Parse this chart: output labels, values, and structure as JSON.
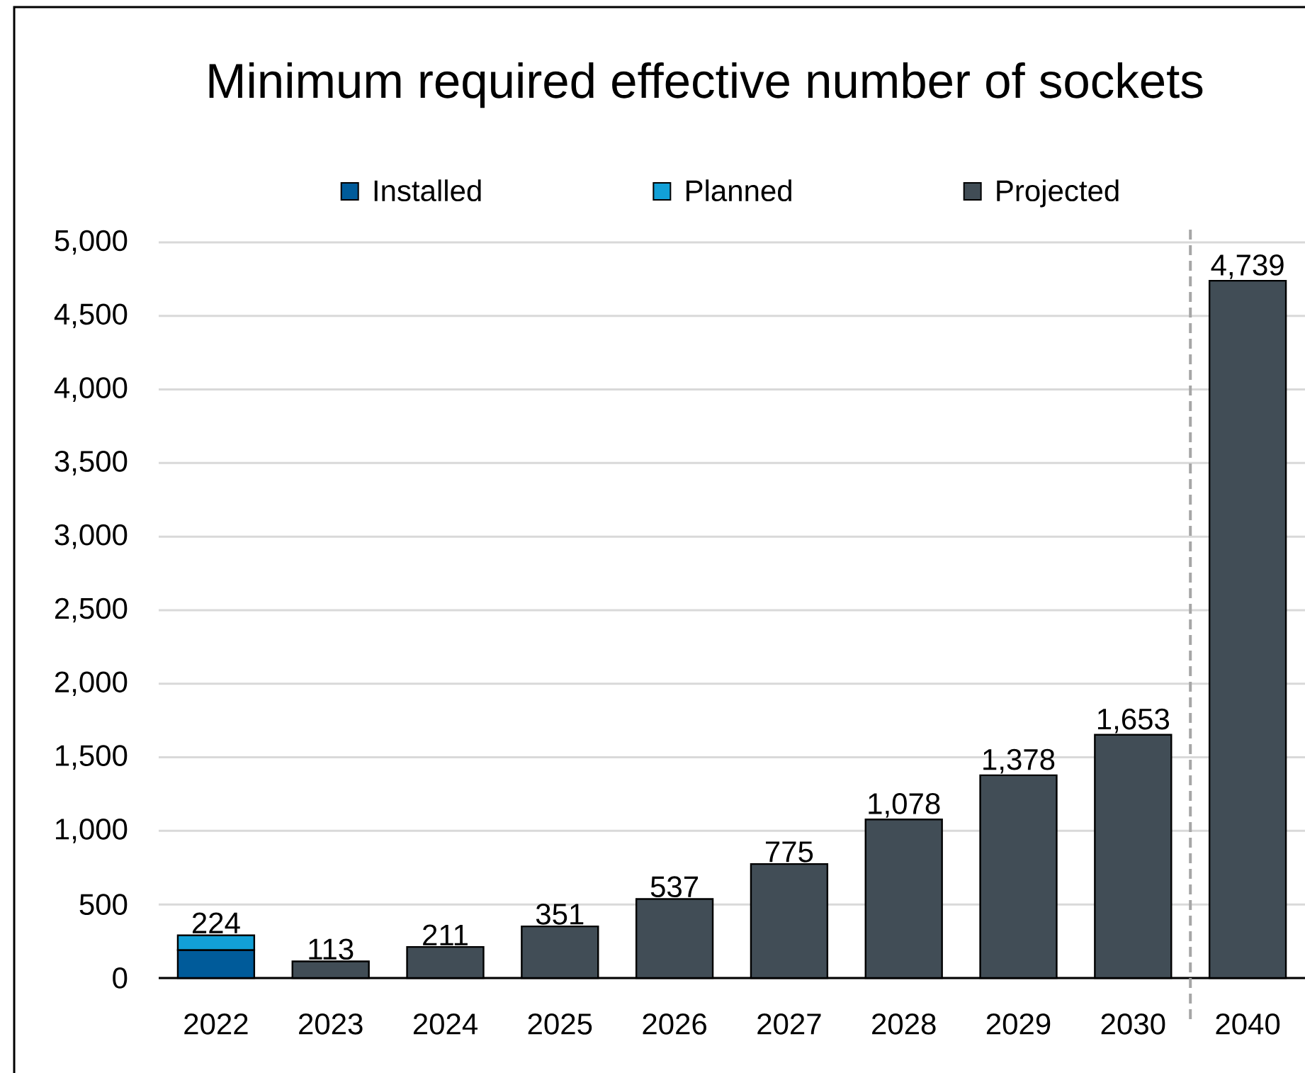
{
  "chart_data": {
    "type": "bar",
    "title": "Minimum required effective number of sockets",
    "categories": [
      "2022",
      "2023",
      "2024",
      "2025",
      "2026",
      "2027",
      "2028",
      "2029",
      "2030",
      "2040"
    ],
    "stacked": true,
    "series": [
      {
        "name": "Installed",
        "color": "#005b9a",
        "values": [
          190,
          null,
          null,
          null,
          null,
          null,
          null,
          null,
          null,
          null
        ]
      },
      {
        "name": "Planned",
        "color": "#12a0d7",
        "values": [
          100,
          null,
          null,
          null,
          null,
          null,
          null,
          null,
          null,
          null
        ]
      },
      {
        "name": "Projected",
        "color": "#414d56",
        "values": [
          null,
          113,
          211,
          351,
          537,
          775,
          1078,
          1378,
          1653,
          4739
        ],
        "value_labels": [
          null,
          "113",
          "211",
          "351",
          "537",
          "775",
          "1,078",
          "1,378",
          "1,653",
          "4,739"
        ]
      }
    ],
    "ylim": [
      0,
      5000
    ],
    "yticks": [
      0,
      500,
      {
        "value": 1000,
        "label": "1,000"
      },
      {
        "value": 1500,
        "label": "1,500"
      },
      {
        "value": 2000,
        "label": "2,000"
      },
      {
        "value": 2500,
        "label": "2,500"
      },
      {
        "value": 3000,
        "label": "3,000"
      },
      {
        "value": 3500,
        "label": "3,500"
      },
      {
        "value": 4000,
        "label": "4,000"
      },
      {
        "value": 4500,
        "label": "4,500"
      },
      {
        "value": 5000,
        "label": "5,000"
      }
    ],
    "grid": "y",
    "legend": "top",
    "annotations": [
      {
        "text": "224",
        "x": "2022",
        "y": 293
      }
    ]
  }
}
